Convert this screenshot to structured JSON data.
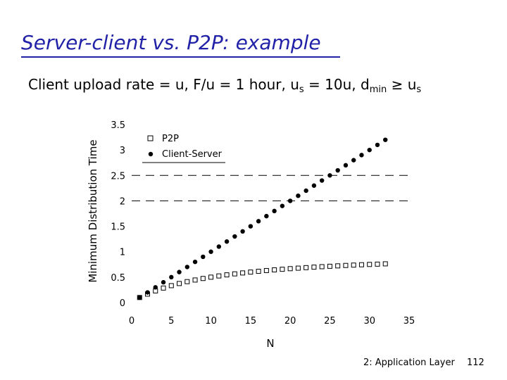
{
  "slide": {
    "title": "Server-client vs. P2P: example",
    "subtitle": {
      "part1": "Client upload rate = u,  F/u = 1 hour,  u",
      "sub1": "s",
      "part2": " = 10u,  d",
      "sub2": "min",
      "part3": " ≥ u",
      "sub3": "s"
    },
    "footer": {
      "section": "2: Application Layer",
      "page": "112"
    }
  },
  "chart_data": {
    "type": "scatter",
    "title": "",
    "xlabel": "N",
    "ylabel": "Minimum Distribution Time",
    "xlim": [
      0,
      35
    ],
    "ylim": [
      0,
      3.5
    ],
    "x_ticks": [
      "0",
      "5",
      "10",
      "15",
      "20",
      "25",
      "30",
      "35"
    ],
    "y_ticks": [
      "0",
      "0.5",
      "1",
      "1.5",
      "2",
      "2.5",
      "3",
      "3.5"
    ],
    "grid": "dashed horizontal lines at 2 and 2.5",
    "legend": {
      "position": "top-left",
      "entries": [
        {
          "label": "P2P",
          "marker": "open-square"
        },
        {
          "label": "Client-Server",
          "marker": "filled-circle"
        }
      ]
    },
    "series": [
      {
        "name": "P2P",
        "marker": "open-square",
        "color": "#000000",
        "x": [
          1,
          2,
          3,
          4,
          5,
          6,
          7,
          8,
          9,
          10,
          11,
          12,
          13,
          14,
          15,
          16,
          17,
          18,
          19,
          20,
          21,
          22,
          23,
          24,
          25,
          26,
          27,
          28,
          29,
          30,
          31,
          32
        ],
        "y": [
          0.1,
          0.167,
          0.23,
          0.286,
          0.333,
          0.375,
          0.412,
          0.444,
          0.474,
          0.5,
          0.524,
          0.545,
          0.565,
          0.583,
          0.6,
          0.615,
          0.63,
          0.643,
          0.655,
          0.667,
          0.677,
          0.687,
          0.697,
          0.706,
          0.714,
          0.722,
          0.73,
          0.737,
          0.744,
          0.75,
          0.756,
          0.762
        ]
      },
      {
        "name": "Client-Server",
        "marker": "filled-circle",
        "color": "#000000",
        "x": [
          1,
          2,
          3,
          4,
          5,
          6,
          7,
          8,
          9,
          10,
          11,
          12,
          13,
          14,
          15,
          16,
          17,
          18,
          19,
          20,
          21,
          22,
          23,
          24,
          25,
          26,
          27,
          28,
          29,
          30,
          31,
          32
        ],
        "y": [
          0.1,
          0.2,
          0.3,
          0.4,
          0.5,
          0.6,
          0.7,
          0.8,
          0.9,
          1.0,
          1.1,
          1.2,
          1.3,
          1.4,
          1.5,
          1.6,
          1.7,
          1.8,
          1.9,
          2.0,
          2.1,
          2.2,
          2.3,
          2.4,
          2.5,
          2.6,
          2.7,
          2.8,
          2.9,
          3.0,
          3.1,
          3.2
        ]
      }
    ]
  }
}
